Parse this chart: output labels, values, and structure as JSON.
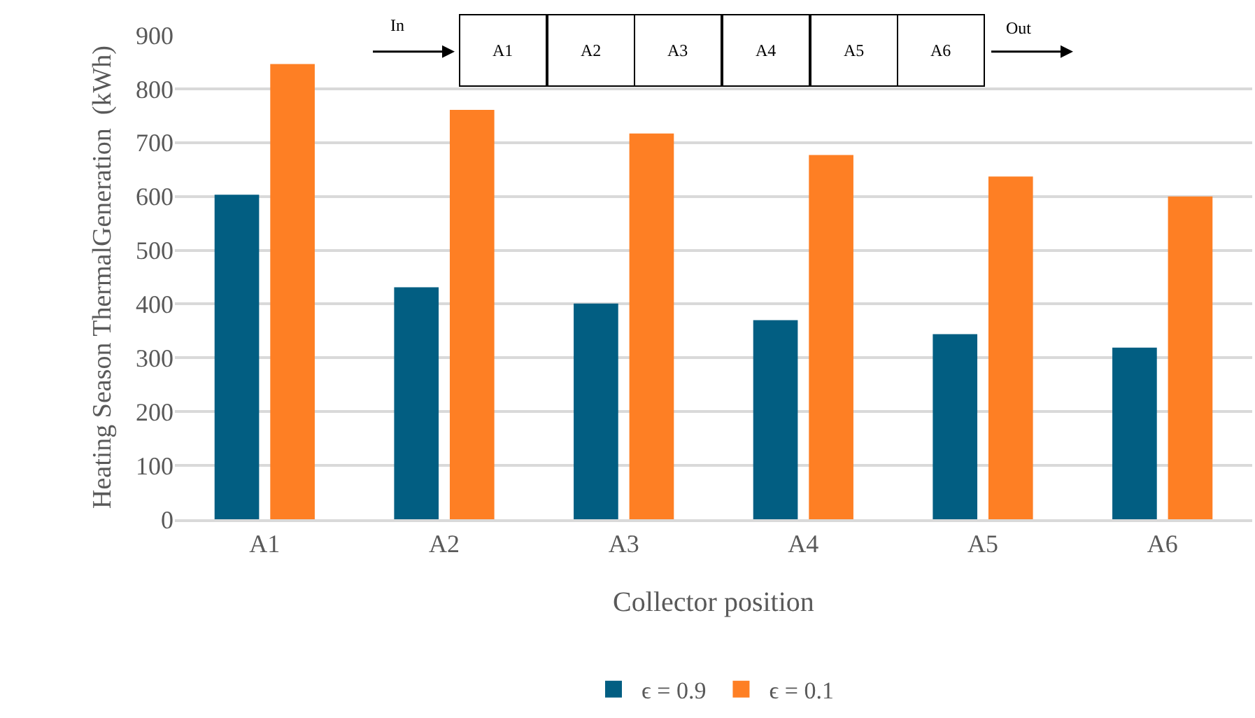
{
  "chart_data": {
    "type": "bar",
    "xlabel": "Collector position",
    "ylabel": "Heating Season ThermalGeneration  (kWh)",
    "categories": [
      "A1",
      "A2",
      "A3",
      "A4",
      "A5",
      "A6"
    ],
    "series": [
      {
        "name": "ϵ = 0.9",
        "color": "#025e82",
        "values": [
          603,
          431,
          401,
          370,
          344,
          319
        ]
      },
      {
        "name": "ϵ = 0.1",
        "color": "#fe7f24",
        "values": [
          846,
          761,
          717,
          677,
          637,
          600
        ]
      }
    ],
    "ylim": [
      0,
      900
    ],
    "yticks": [
      0,
      100,
      200,
      300,
      400,
      500,
      600,
      700,
      800,
      900
    ],
    "grid": "y",
    "legend": "bottom",
    "annotations": [
      "In",
      "A1",
      "A2",
      "A3",
      "A4",
      "A5",
      "A6",
      "Out"
    ]
  }
}
